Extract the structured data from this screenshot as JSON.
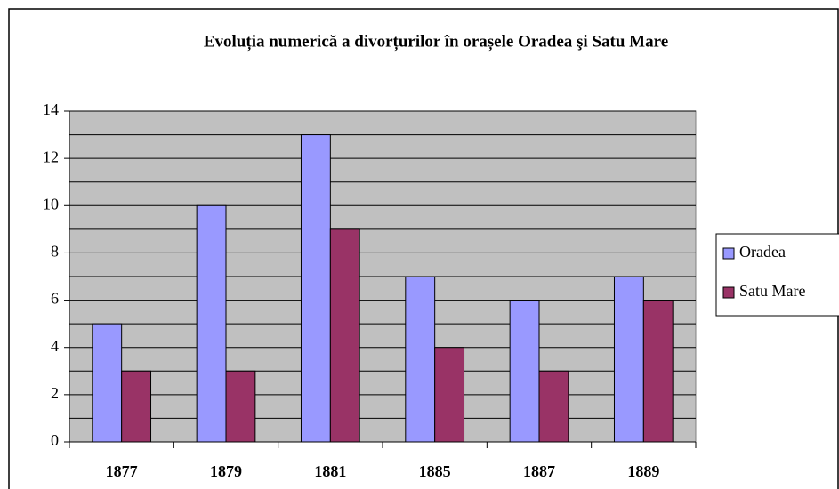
{
  "chart_data": {
    "type": "bar",
    "title": "Evoluția numerică a divorțurilor în orașele Oradea şi Satu Mare",
    "categories": [
      "1877",
      "1879",
      "1881",
      "1885",
      "1887",
      "1889"
    ],
    "series": [
      {
        "name": "Oradea",
        "color": "#9999ff",
        "values": [
          5,
          10,
          13,
          7,
          6,
          7
        ]
      },
      {
        "name": "Satu Mare",
        "color": "#993366",
        "values": [
          3,
          3,
          9,
          4,
          3,
          6
        ]
      }
    ],
    "ylim": [
      0,
      14
    ],
    "yticks": [
      0,
      2,
      4,
      6,
      8,
      10,
      12,
      14
    ],
    "minor_yticks": [
      1,
      3,
      5,
      7,
      9,
      11,
      13
    ],
    "grid": true,
    "legend": "right"
  }
}
